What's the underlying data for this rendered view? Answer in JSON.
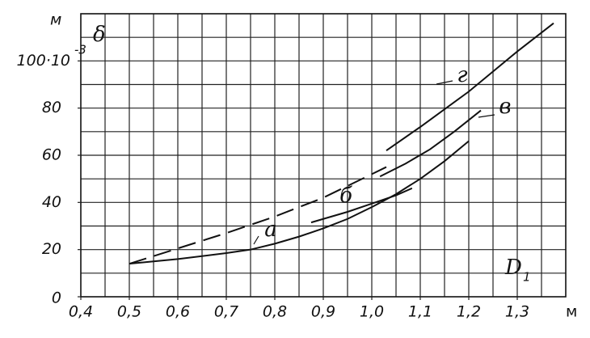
{
  "chart_data": {
    "type": "line",
    "y_unit": "м",
    "y_label": "δ",
    "y_exponent": "-3",
    "x_label": "D",
    "x_label_subscript": "1",
    "x_unit": "м",
    "xlim": [
      0.4,
      1.4
    ],
    "ylim": [
      0,
      120
    ],
    "xticks": [
      {
        "value": 0.4,
        "label": "0,4"
      },
      {
        "value": 0.5,
        "label": "0,5"
      },
      {
        "value": 0.6,
        "label": "0,6"
      },
      {
        "value": 0.7,
        "label": "0,7"
      },
      {
        "value": 0.8,
        "label": "0,8"
      },
      {
        "value": 0.9,
        "label": "0,9"
      },
      {
        "value": 1.0,
        "label": "1,0"
      },
      {
        "value": 1.1,
        "label": "1,1"
      },
      {
        "value": 1.2,
        "label": "1,2"
      },
      {
        "value": 1.3,
        "label": "1,3"
      }
    ],
    "yticks": [
      0,
      20,
      40,
      60,
      80,
      {
        "value": 100,
        "label": "100·10"
      }
    ],
    "x_grid": [
      0.45,
      0.5,
      0.55,
      0.6,
      0.65,
      0.7,
      0.75,
      0.8,
      0.85,
      0.9,
      0.95,
      1.0,
      1.05,
      1.1,
      1.15,
      1.2,
      1.25,
      1.3,
      1.35
    ],
    "y_grid": [
      10,
      20,
      30,
      40,
      50,
      60,
      70,
      80,
      90,
      100,
      110
    ],
    "series": [
      {
        "name": "а",
        "color": "#111",
        "style": "solid",
        "x": [
          0.5,
          0.6,
          0.7,
          0.75,
          0.8,
          0.85,
          0.9,
          0.95,
          1.0,
          1.05,
          1.1,
          1.15,
          1.2
        ],
        "values": [
          14,
          16,
          18.5,
          20,
          22.5,
          25.5,
          29,
          33,
          38,
          43.5,
          50,
          57.5,
          66
        ]
      },
      {
        "name": "б",
        "color": "#111",
        "style": "solid",
        "x": [
          0.875,
          0.95,
          1.0,
          1.05,
          1.083
        ],
        "values": [
          31.5,
          36,
          39.5,
          43,
          46
        ]
      },
      {
        "name": "в",
        "color": "#111",
        "style": "solid",
        "x": [
          1.017,
          1.07,
          1.12,
          1.17,
          1.225
        ],
        "values": [
          51,
          56.5,
          62.5,
          70,
          79
        ]
      },
      {
        "name": "г",
        "color": "#111",
        "style": "solid",
        "x": [
          1.03,
          1.1,
          1.2,
          1.3,
          1.375
        ],
        "values": [
          62,
          72,
          87,
          104,
          116
        ]
      },
      {
        "color": "#111",
        "style": "dashed",
        "x": [
          0.5,
          0.6,
          0.7,
          0.8,
          0.9,
          0.95,
          1.03
        ],
        "values": [
          14,
          20.5,
          27,
          34,
          42,
          47,
          55
        ]
      }
    ]
  }
}
